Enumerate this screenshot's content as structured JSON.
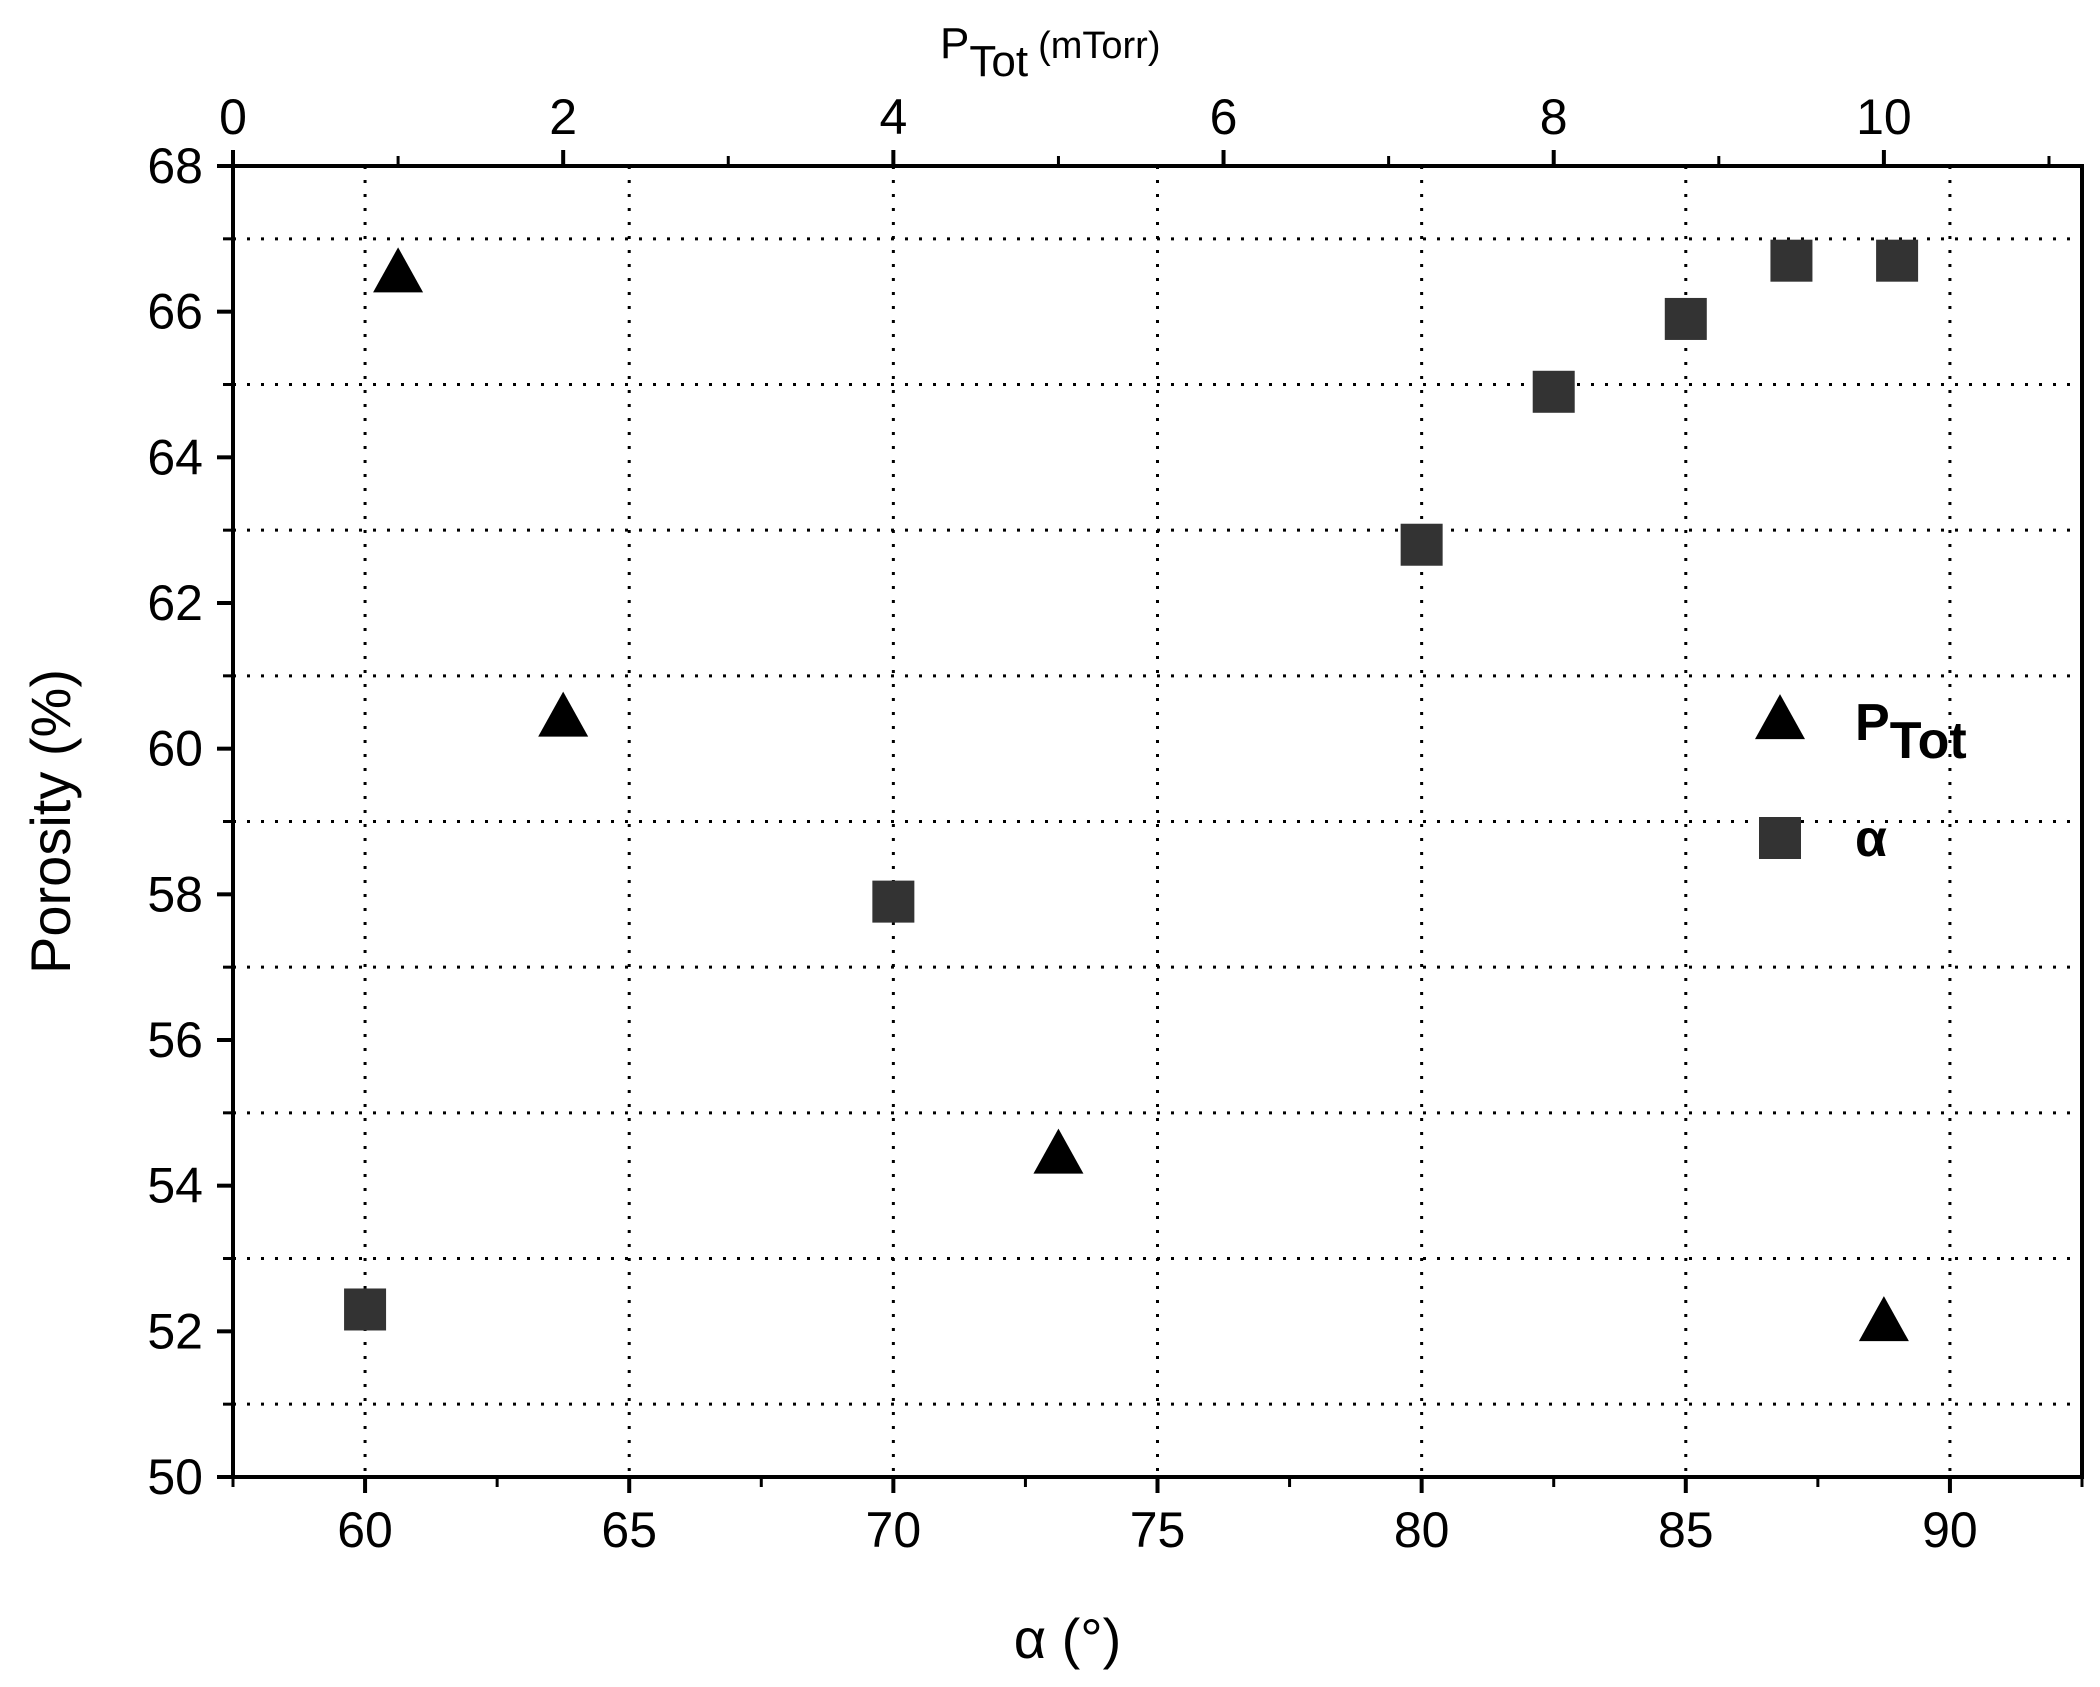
{
  "chart_data": {
    "type": "scatter",
    "title": "",
    "xlabel": "α (°)",
    "ylabel": "Porosity (%)",
    "x2label_main": "P",
    "x2label_sub": "Tot",
    "x2label_unit": "(mTorr)",
    "xlim": [
      57.5,
      92.5
    ],
    "ylim": [
      50,
      68
    ],
    "x2lim": [
      0,
      11.2
    ],
    "x_ticks": [
      60,
      65,
      70,
      75,
      80,
      85,
      90
    ],
    "x_tick_labels": [
      "60",
      "65",
      "70",
      "75",
      "80",
      "85",
      "90"
    ],
    "y_ticks": [
      50,
      52,
      54,
      56,
      58,
      60,
      62,
      64,
      66,
      68
    ],
    "y_tick_labels": [
      "50",
      "52",
      "54",
      "56",
      "58",
      "60",
      "62",
      "64",
      "66",
      "68"
    ],
    "x2_ticks": [
      0,
      2,
      4,
      6,
      8,
      10
    ],
    "x2_tick_labels": [
      "0",
      "2",
      "4",
      "6",
      "8",
      "10"
    ],
    "grid": "dotted",
    "legend_position": "right",
    "series": [
      {
        "name": "P",
        "name_sub": "Tot",
        "marker": "triangle",
        "axis": "top",
        "color": "#000000",
        "points": [
          {
            "x": 1.0,
            "y": 66.5
          },
          {
            "x": 2.0,
            "y": 60.4
          },
          {
            "x": 5.0,
            "y": 54.4
          },
          {
            "x": 10.0,
            "y": 52.1
          }
        ]
      },
      {
        "name": "α",
        "marker": "square",
        "axis": "bottom",
        "color": "#333333",
        "points": [
          {
            "x": 60,
            "y": 52.3
          },
          {
            "x": 70,
            "y": 57.9
          },
          {
            "x": 80,
            "y": 62.8
          },
          {
            "x": 82.5,
            "y": 64.9
          },
          {
            "x": 85,
            "y": 65.9
          },
          {
            "x": 87,
            "y": 66.7
          },
          {
            "x": 89,
            "y": 66.7
          }
        ]
      }
    ]
  }
}
